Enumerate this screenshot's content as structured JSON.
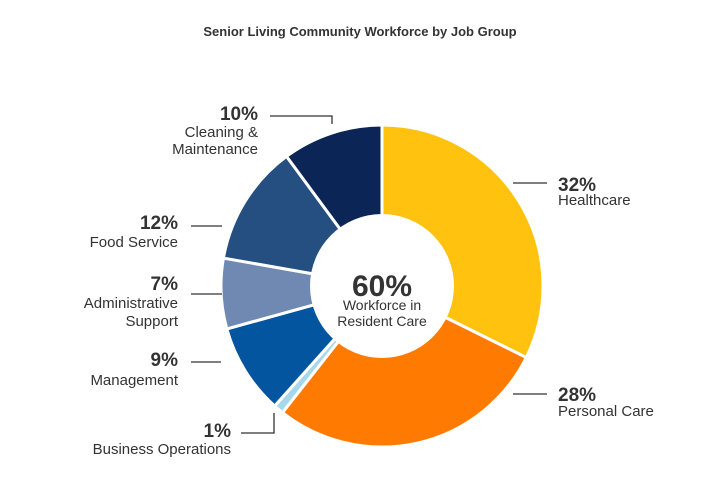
{
  "chart_data": {
    "type": "pie",
    "title": "Senior Living Community Workforce by Job Group",
    "center": {
      "value": "60%",
      "label_lines": [
        "Workforce in",
        "Resident Care"
      ]
    },
    "slices": [
      {
        "name": "Healthcare",
        "value": 32,
        "pct_label": "32%",
        "label_lines": [
          "Healthcare"
        ],
        "color": "#FFC20E"
      },
      {
        "name": "Personal Care",
        "value": 28,
        "pct_label": "28%",
        "label_lines": [
          "Personal Care"
        ],
        "color": "#FF7A00"
      },
      {
        "name": "Business Operations",
        "value": 1,
        "pct_label": "1%",
        "label_lines": [
          "Business Operations"
        ],
        "color": "#A9D7EA"
      },
      {
        "name": "Management",
        "value": 9,
        "pct_label": "9%",
        "label_lines": [
          "Management"
        ],
        "color": "#0455A0"
      },
      {
        "name": "Administrative Support",
        "value": 7,
        "pct_label": "7%",
        "label_lines": [
          "Administrative",
          "Support"
        ],
        "color": "#7089B2"
      },
      {
        "name": "Food Service",
        "value": 12,
        "pct_label": "12%",
        "label_lines": [
          "Food Service"
        ],
        "color": "#254F81"
      },
      {
        "name": "Cleaning & Maintenance",
        "value": 10,
        "pct_label": "10%",
        "label_lines": [
          "Cleaning &",
          "Maintenance"
        ],
        "color": "#0B2556"
      }
    ]
  }
}
